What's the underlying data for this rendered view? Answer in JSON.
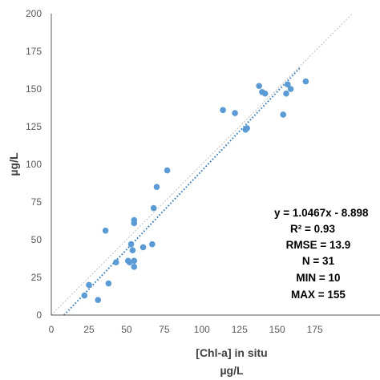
{
  "chart_data": {
    "type": "scatter",
    "title": "",
    "xlabel": "[Chl-a] in situ",
    "xlabel_unit": "µg/L",
    "ylabel": "µg/L",
    "xlim": [
      0,
      200
    ],
    "ylim": [
      0,
      200
    ],
    "xticks": [
      "0",
      "25",
      "50",
      "75",
      "100",
      "125",
      "150",
      "175"
    ],
    "yticks": [
      "0",
      "25",
      "50",
      "75",
      "100",
      "125",
      "150",
      "175",
      "200"
    ],
    "grid": false,
    "legend": "none",
    "point_color": "#5b9bd5",
    "trendline_color": "#2e75b6",
    "reference_line_color": "#bfbfbf",
    "series": [
      {
        "x": [
          22,
          25,
          31,
          36,
          38,
          43,
          51,
          52,
          53,
          54,
          55,
          55,
          55,
          55,
          61,
          67,
          68,
          70,
          77,
          114,
          122,
          129,
          130,
          138,
          140,
          142,
          154,
          156,
          157,
          159,
          169
        ],
        "y": [
          13,
          20,
          10,
          56,
          21,
          35,
          36,
          35,
          47,
          43,
          36,
          32,
          61,
          63,
          45,
          47,
          71,
          85,
          96,
          136,
          134,
          123,
          124,
          152,
          148,
          147,
          133,
          147,
          153,
          150,
          155
        ]
      }
    ],
    "trendline": {
      "slope": 1.0467,
      "intercept": -8.898,
      "x_range": [
        8.5,
        165
      ]
    },
    "reference_line": {
      "slope": 1,
      "intercept": 0,
      "x_range": [
        0,
        200
      ]
    },
    "annotations": {
      "equation": "y = 1.0467x - 8.898",
      "r2": "R² = 0.93",
      "rmse": "RMSE = 13.9",
      "n": "N = 31",
      "min": "MIN = 10",
      "max": "MAX = 155"
    }
  }
}
